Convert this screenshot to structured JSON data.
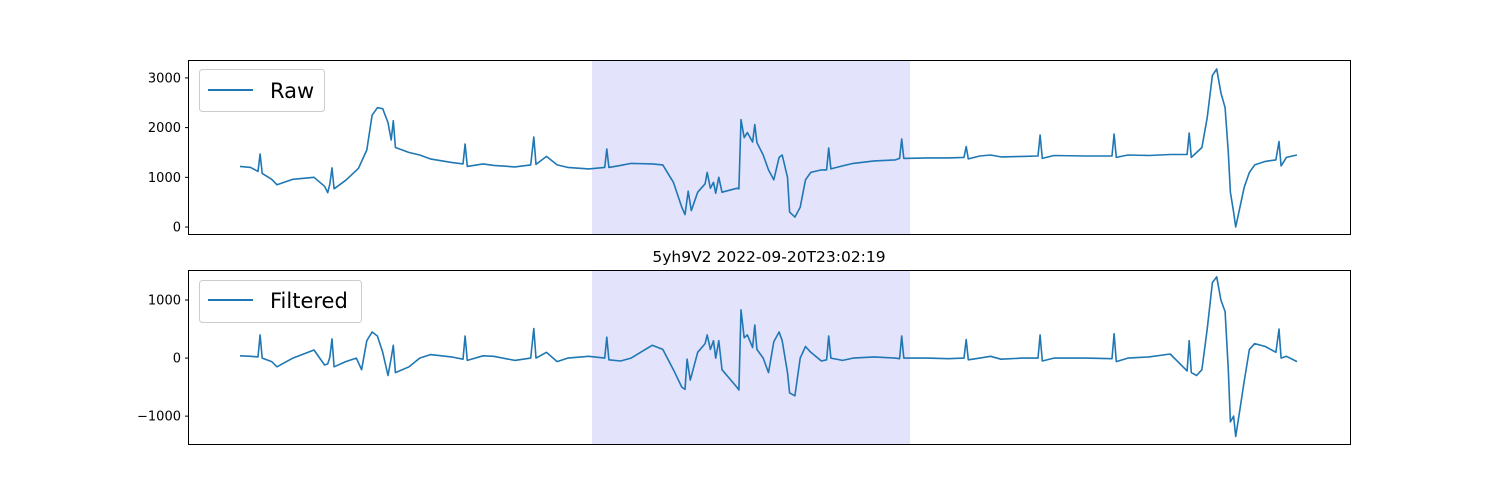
{
  "chart_data": [
    {
      "type": "line",
      "title": "",
      "xlabel": "",
      "ylabel": "",
      "ylim": [
        -140,
        3340
      ],
      "xlim": [
        0,
        1
      ],
      "yticks": [
        0,
        1000,
        2000,
        3000
      ],
      "xticks_visible": false,
      "legend": {
        "placement": "top-left",
        "entries": [
          "Raw"
        ]
      },
      "highlight_span": {
        "x": [
          0.333,
          0.634
        ],
        "color": "#e3e3fc"
      },
      "series": [
        {
          "name": "Raw",
          "color": "#1f77b4",
          "points": [
            [
              0.0,
              1220
            ],
            [
              0.01,
              1200
            ],
            [
              0.017,
              1120
            ],
            [
              0.019,
              1470
            ],
            [
              0.021,
              1080
            ],
            [
              0.03,
              960
            ],
            [
              0.035,
              850
            ],
            [
              0.05,
              960
            ],
            [
              0.07,
              1000
            ],
            [
              0.08,
              820
            ],
            [
              0.083,
              690
            ],
            [
              0.085,
              860
            ],
            [
              0.087,
              1190
            ],
            [
              0.089,
              770
            ],
            [
              0.1,
              940
            ],
            [
              0.112,
              1180
            ],
            [
              0.12,
              1550
            ],
            [
              0.125,
              2250
            ],
            [
              0.13,
              2400
            ],
            [
              0.135,
              2380
            ],
            [
              0.14,
              2100
            ],
            [
              0.143,
              1750
            ],
            [
              0.145,
              2140
            ],
            [
              0.147,
              1600
            ],
            [
              0.16,
              1500
            ],
            [
              0.17,
              1450
            ],
            [
              0.18,
              1370
            ],
            [
              0.2,
              1300
            ],
            [
              0.211,
              1270
            ],
            [
              0.213,
              1670
            ],
            [
              0.215,
              1220
            ],
            [
              0.23,
              1270
            ],
            [
              0.24,
              1240
            ],
            [
              0.26,
              1210
            ],
            [
              0.275,
              1250
            ],
            [
              0.278,
              1810
            ],
            [
              0.28,
              1260
            ],
            [
              0.29,
              1420
            ],
            [
              0.3,
              1250
            ],
            [
              0.31,
              1200
            ],
            [
              0.33,
              1170
            ],
            [
              0.345,
              1200
            ],
            [
              0.347,
              1570
            ],
            [
              0.349,
              1200
            ],
            [
              0.36,
              1240
            ],
            [
              0.37,
              1280
            ],
            [
              0.39,
              1270
            ],
            [
              0.4,
              1250
            ],
            [
              0.41,
              900
            ],
            [
              0.418,
              400
            ],
            [
              0.421,
              250
            ],
            [
              0.424,
              720
            ],
            [
              0.427,
              330
            ],
            [
              0.433,
              700
            ],
            [
              0.44,
              870
            ],
            [
              0.442,
              1100
            ],
            [
              0.445,
              780
            ],
            [
              0.448,
              900
            ],
            [
              0.45,
              680
            ],
            [
              0.453,
              1000
            ],
            [
              0.456,
              700
            ],
            [
              0.47,
              780
            ],
            [
              0.472,
              770
            ],
            [
              0.474,
              2160
            ],
            [
              0.477,
              1800
            ],
            [
              0.48,
              1900
            ],
            [
              0.485,
              1710
            ],
            [
              0.487,
              2060
            ],
            [
              0.489,
              1700
            ],
            [
              0.495,
              1450
            ],
            [
              0.5,
              1150
            ],
            [
              0.505,
              950
            ],
            [
              0.51,
              1400
            ],
            [
              0.513,
              1450
            ],
            [
              0.518,
              1000
            ],
            [
              0.52,
              300
            ],
            [
              0.525,
              200
            ],
            [
              0.53,
              400
            ],
            [
              0.535,
              950
            ],
            [
              0.54,
              1100
            ],
            [
              0.55,
              1150
            ],
            [
              0.555,
              1150
            ],
            [
              0.557,
              1590
            ],
            [
              0.559,
              1170
            ],
            [
              0.57,
              1230
            ],
            [
              0.58,
              1280
            ],
            [
              0.6,
              1330
            ],
            [
              0.62,
              1350
            ],
            [
              0.624,
              1380
            ],
            [
              0.626,
              1770
            ],
            [
              0.628,
              1380
            ],
            [
              0.65,
              1390
            ],
            [
              0.67,
              1390
            ],
            [
              0.685,
              1400
            ],
            [
              0.687,
              1620
            ],
            [
              0.689,
              1370
            ],
            [
              0.7,
              1430
            ],
            [
              0.71,
              1450
            ],
            [
              0.72,
              1410
            ],
            [
              0.74,
              1420
            ],
            [
              0.755,
              1430
            ],
            [
              0.757,
              1850
            ],
            [
              0.759,
              1380
            ],
            [
              0.77,
              1440
            ],
            [
              0.8,
              1430
            ],
            [
              0.825,
              1430
            ],
            [
              0.827,
              1870
            ],
            [
              0.829,
              1400
            ],
            [
              0.84,
              1450
            ],
            [
              0.86,
              1440
            ],
            [
              0.88,
              1460
            ],
            [
              0.896,
              1460
            ],
            [
              0.898,
              1890
            ],
            [
              0.9,
              1400
            ],
            [
              0.905,
              1500
            ],
            [
              0.91,
              1600
            ],
            [
              0.915,
              2200
            ],
            [
              0.92,
              3050
            ],
            [
              0.924,
              3180
            ],
            [
              0.928,
              2700
            ],
            [
              0.932,
              2400
            ],
            [
              0.935,
              1500
            ],
            [
              0.937,
              700
            ],
            [
              0.94,
              300
            ],
            [
              0.942,
              0
            ],
            [
              0.945,
              300
            ],
            [
              0.95,
              800
            ],
            [
              0.955,
              1100
            ],
            [
              0.96,
              1250
            ],
            [
              0.97,
              1320
            ],
            [
              0.98,
              1350
            ],
            [
              0.983,
              1720
            ],
            [
              0.985,
              1230
            ],
            [
              0.99,
              1400
            ],
            [
              1.0,
              1450
            ]
          ]
        }
      ]
    },
    {
      "type": "line",
      "title": "5yh9V2 2022-09-20T23:02:19",
      "xlabel": "",
      "ylabel": "",
      "ylim": [
        -1480,
        1500
      ],
      "xlim": [
        0,
        1
      ],
      "yticks": [
        -1000,
        0,
        1000
      ],
      "xticks_visible": false,
      "legend": {
        "placement": "top-left",
        "entries": [
          "Filtered"
        ]
      },
      "highlight_span": {
        "x": [
          0.333,
          0.634
        ],
        "color": "#e3e3fc"
      },
      "series": [
        {
          "name": "Filtered",
          "color": "#1f77b4",
          "points": [
            [
              0.0,
              40
            ],
            [
              0.01,
              30
            ],
            [
              0.017,
              20
            ],
            [
              0.019,
              400
            ],
            [
              0.021,
              0
            ],
            [
              0.03,
              -60
            ],
            [
              0.035,
              -150
            ],
            [
              0.05,
              0
            ],
            [
              0.07,
              140
            ],
            [
              0.08,
              -120
            ],
            [
              0.083,
              -100
            ],
            [
              0.085,
              10
            ],
            [
              0.087,
              330
            ],
            [
              0.089,
              -150
            ],
            [
              0.1,
              -60
            ],
            [
              0.11,
              0
            ],
            [
              0.115,
              -200
            ],
            [
              0.12,
              300
            ],
            [
              0.125,
              450
            ],
            [
              0.13,
              380
            ],
            [
              0.135,
              100
            ],
            [
              0.14,
              -300
            ],
            [
              0.143,
              0
            ],
            [
              0.145,
              220
            ],
            [
              0.147,
              -250
            ],
            [
              0.16,
              -150
            ],
            [
              0.17,
              0
            ],
            [
              0.18,
              60
            ],
            [
              0.2,
              20
            ],
            [
              0.211,
              -20
            ],
            [
              0.213,
              380
            ],
            [
              0.215,
              -40
            ],
            [
              0.23,
              40
            ],
            [
              0.24,
              30
            ],
            [
              0.26,
              -40
            ],
            [
              0.275,
              0
            ],
            [
              0.278,
              510
            ],
            [
              0.28,
              0
            ],
            [
              0.29,
              100
            ],
            [
              0.3,
              -60
            ],
            [
              0.31,
              0
            ],
            [
              0.33,
              30
            ],
            [
              0.345,
              0
            ],
            [
              0.347,
              360
            ],
            [
              0.349,
              -30
            ],
            [
              0.36,
              -50
            ],
            [
              0.37,
              0
            ],
            [
              0.39,
              220
            ],
            [
              0.4,
              150
            ],
            [
              0.41,
              -200
            ],
            [
              0.418,
              -500
            ],
            [
              0.421,
              -540
            ],
            [
              0.423,
              -20
            ],
            [
              0.426,
              -380
            ],
            [
              0.433,
              100
            ],
            [
              0.44,
              250
            ],
            [
              0.442,
              400
            ],
            [
              0.445,
              150
            ],
            [
              0.448,
              300
            ],
            [
              0.45,
              0
            ],
            [
              0.453,
              300
            ],
            [
              0.456,
              -200
            ],
            [
              0.47,
              -500
            ],
            [
              0.472,
              -550
            ],
            [
              0.474,
              830
            ],
            [
              0.477,
              350
            ],
            [
              0.48,
              400
            ],
            [
              0.485,
              180
            ],
            [
              0.487,
              570
            ],
            [
              0.489,
              150
            ],
            [
              0.495,
              0
            ],
            [
              0.5,
              -250
            ],
            [
              0.505,
              280
            ],
            [
              0.51,
              450
            ],
            [
              0.513,
              300
            ],
            [
              0.518,
              -250
            ],
            [
              0.52,
              -600
            ],
            [
              0.525,
              -650
            ],
            [
              0.53,
              0
            ],
            [
              0.535,
              200
            ],
            [
              0.54,
              100
            ],
            [
              0.55,
              -50
            ],
            [
              0.555,
              -30
            ],
            [
              0.557,
              380
            ],
            [
              0.559,
              0
            ],
            [
              0.57,
              -40
            ],
            [
              0.58,
              0
            ],
            [
              0.6,
              20
            ],
            [
              0.62,
              0
            ],
            [
              0.624,
              -10
            ],
            [
              0.626,
              380
            ],
            [
              0.628,
              0
            ],
            [
              0.65,
              0
            ],
            [
              0.67,
              -10
            ],
            [
              0.685,
              0
            ],
            [
              0.687,
              320
            ],
            [
              0.689,
              -30
            ],
            [
              0.7,
              0
            ],
            [
              0.71,
              30
            ],
            [
              0.72,
              -20
            ],
            [
              0.74,
              0
            ],
            [
              0.755,
              0
            ],
            [
              0.757,
              400
            ],
            [
              0.759,
              -50
            ],
            [
              0.77,
              0
            ],
            [
              0.8,
              0
            ],
            [
              0.825,
              -10
            ],
            [
              0.827,
              420
            ],
            [
              0.829,
              -60
            ],
            [
              0.84,
              0
            ],
            [
              0.86,
              20
            ],
            [
              0.88,
              70
            ],
            [
              0.896,
              -220
            ],
            [
              0.898,
              300
            ],
            [
              0.9,
              -250
            ],
            [
              0.905,
              -300
            ],
            [
              0.91,
              -200
            ],
            [
              0.915,
              500
            ],
            [
              0.92,
              1300
            ],
            [
              0.924,
              1400
            ],
            [
              0.928,
              1000
            ],
            [
              0.932,
              800
            ],
            [
              0.935,
              -200
            ],
            [
              0.937,
              -1100
            ],
            [
              0.94,
              -1000
            ],
            [
              0.942,
              -1350
            ],
            [
              0.945,
              -1000
            ],
            [
              0.95,
              -400
            ],
            [
              0.955,
              150
            ],
            [
              0.96,
              250
            ],
            [
              0.97,
              200
            ],
            [
              0.98,
              100
            ],
            [
              0.983,
              500
            ],
            [
              0.985,
              0
            ],
            [
              0.99,
              30
            ],
            [
              1.0,
              -60
            ]
          ]
        }
      ]
    }
  ]
}
